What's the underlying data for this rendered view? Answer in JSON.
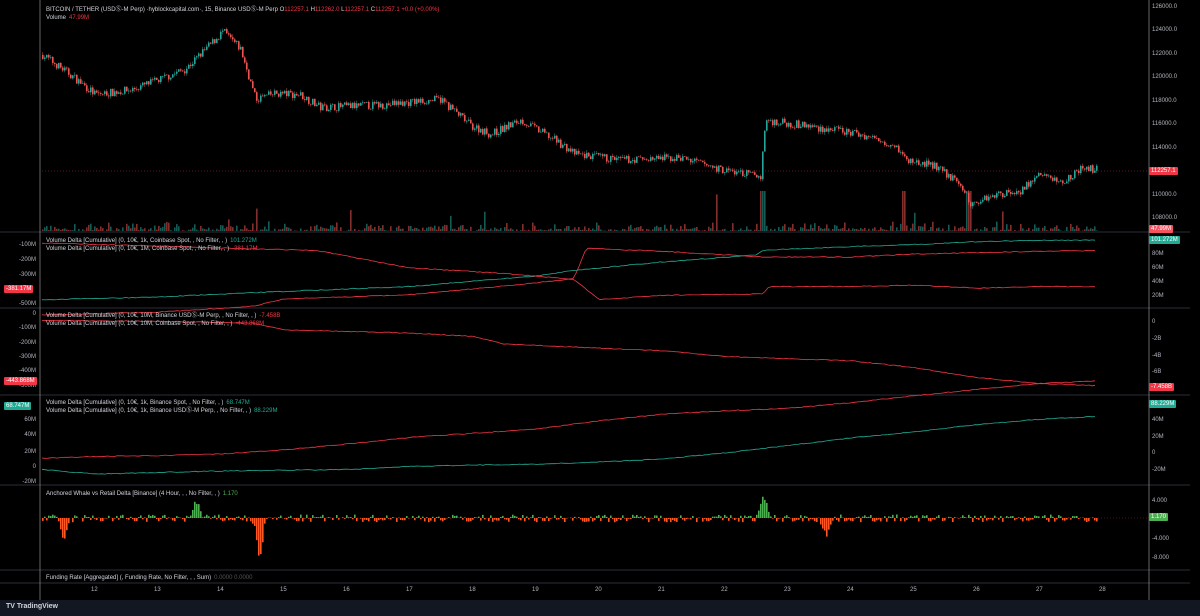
{
  "header": {
    "symbol_line": "BITCOIN / TETHER (USDⓈ-M Perp) ·hyblockcapital.com·, 15, Binance USDⓈ-M Perp",
    "ohlc": {
      "o_label": "O",
      "o": "112257.1",
      "h_label": "H",
      "h": "112262.0",
      "l_label": "L",
      "l": "112257.1",
      "c_label": "C",
      "c": "112257.1",
      "change": "+0.0 (+0.00%)"
    },
    "volume_label": "Volume",
    "volume_value": "47.99M"
  },
  "colors": {
    "up": "#26a69a",
    "down": "#ef5350",
    "line_green": "#22ab94",
    "line_red": "#f23645",
    "hist_up": "#4caf50",
    "hist_down": "#ff5722",
    "bg": "#000000"
  },
  "panes": {
    "vd1": {
      "a": "Volume Delta [Cumulative] (0, 10€, 1k, Coinbase Spot, , No Filter, , )",
      "a_val": "101.272M",
      "b": "Volume Delta [Cumulative] (0, 10€, 1M, Coinbase Spot, , No Filter, , )",
      "b_val": "-381.17M"
    },
    "vd2": {
      "a": "Volume Delta [Cumulative] (0, 10€, 10M, Binance USDⓈ-M Perp, , No Filter, , )",
      "a_val": "-7.458B",
      "b": "Volume Delta [Cumulative] (0, 10€, 10M, Coinbase Spot, , No Filter, , )",
      "b_val": "-443.868M"
    },
    "vd3": {
      "a": "Volume Delta [Cumulative] (0, 10€, 1k, Binance Spot, , No Filter, , )",
      "a_val": "68.747M",
      "b": "Volume Delta [Cumulative] (0, 10€, 1k, Binance USDⓈ-M Perp, , No Filter, , )",
      "b_val": "88.229M"
    },
    "whale": {
      "a": "Anchored Whale vs Retail Delta [Binance] (4 Hour, , , No Filter, , )",
      "a_val": "1.170"
    },
    "funding": {
      "a": "Funding Rate [Aggregated] (, Funding Rate, No Filter, , , Sum)",
      "a_val": "0.0000 0.0000"
    }
  },
  "axes": {
    "price_ticks": [
      "126000.0",
      "124000.0",
      "122000.0",
      "120000.0",
      "118000.0",
      "116000.0",
      "114000.0",
      "110000.0",
      "108000.0"
    ],
    "price_tag": "112257.1",
    "volume_tag": "47.99M",
    "vd1_left": [
      "-100M",
      "-200M",
      "-300M",
      "-500M"
    ],
    "vd1_left_tag": "-381.17M",
    "vd1_right": [
      "80M",
      "60M",
      "40M",
      "20M"
    ],
    "vd1_right_tag": "101.272M",
    "vd2_left": [
      "0",
      "-100M",
      "-200M",
      "-300M",
      "-400M",
      "-500M"
    ],
    "vd2_left_tag": "-443.868M",
    "vd2_right": [
      "0",
      "-2B",
      "-4B",
      "-6B"
    ],
    "vd2_right_tag": "-7.458B",
    "vd3_left": [
      "60M",
      "40M",
      "20M",
      "0",
      "-20M"
    ],
    "vd3_left_tag": "68.747M",
    "vd3_right": [
      "40M",
      "20M",
      "0",
      "-20M"
    ],
    "vd3_right_tag": "88.229M",
    "whale_right": [
      "4.000",
      "-4.000",
      "-8.000"
    ],
    "whale_tag": "1.170",
    "time_ticks": [
      "12",
      "13",
      "14",
      "15",
      "16",
      "17",
      "18",
      "19",
      "20",
      "21",
      "22",
      "23",
      "24",
      "25",
      "26",
      "27",
      "28"
    ]
  },
  "footer": {
    "brand": "TradingView"
  },
  "chart_data": [
    {
      "type": "candlestick",
      "xlabel": "",
      "ylabel": "",
      "ylim": [
        107500,
        126800
      ],
      "x": [
        11.16,
        11.6,
        12.0,
        12.56,
        13.03,
        13.43,
        13.9,
        14.02,
        14.3,
        14.54,
        14.86,
        15.25,
        15.57,
        16.52,
        17.48,
        17.95,
        18.27,
        18.75,
        19.3,
        19.62,
        20.33,
        21.29,
        21.92,
        22.56,
        22.63,
        23.19,
        24.14,
        24.7,
        24.86,
        25.33,
        25.73,
        25.89,
        26.21,
        26.68,
        27.0,
        27.32,
        27.63,
        27.87
      ],
      "price": [
        122000,
        120300,
        118600,
        119000,
        119900,
        120800,
        123300,
        124000,
        122500,
        118200,
        118700,
        118600,
        117500,
        117700,
        118200,
        116000,
        115200,
        116400,
        114700,
        113500,
        113000,
        113200,
        112200,
        111600,
        116400,
        116000,
        115200,
        114300,
        113000,
        112500,
        110900,
        109200,
        110000,
        110400,
        111800,
        111100,
        112200,
        112257
      ]
    },
    {
      "type": "line",
      "series": [
        {
          "name": "Coinbase Spot 1k",
          "axis": "right",
          "x": [
            11.16,
            13,
            15,
            17,
            19,
            19.6,
            21,
            22.5,
            22.6,
            24,
            25,
            26,
            27,
            27.9
          ],
          "y": [
            16,
            20,
            28,
            35,
            50,
            58,
            70,
            80,
            87,
            92,
            95,
            99,
            101,
            101.3
          ]
        },
        {
          "name": "Coinbase Spot 1M",
          "axis": "left",
          "x": [
            11.16,
            13,
            14.5,
            15.5,
            17,
            18.5,
            19.6,
            20.0,
            21,
            22.6,
            22.7,
            24,
            25,
            26,
            27,
            27.9
          ],
          "y": [
            -80,
            -100,
            -120,
            -130,
            -250,
            -290,
            -330,
            -470,
            -440,
            -430,
            -380,
            -380,
            -370,
            -390,
            -380,
            -381
          ]
        }
      ]
    },
    {
      "type": "line",
      "series": [
        {
          "name": "Binance USDⓈ-M Perp 10M",
          "axis": "right",
          "x": [
            11.16,
            13,
            14.5,
            15,
            17,
            18,
            18.5,
            20,
            21,
            22,
            24,
            25,
            26,
            27,
            27.9
          ],
          "y": [
            0.3,
            0.2,
            0,
            -0.8,
            -1.2,
            -1.6,
            -2.5,
            -3.0,
            -3.3,
            -4.0,
            -4.5,
            -5.3,
            -6.5,
            -7.2,
            -7.458
          ]
        },
        {
          "name": "Coinbase Spot 10M",
          "axis": "left",
          "x": [
            11.16,
            13,
            14.5,
            15,
            17,
            18.5,
            19.6,
            19.8,
            21,
            22.6,
            24,
            25,
            26,
            27,
            27.9
          ],
          "y": [
            0,
            -20,
            -60,
            -110,
            -140,
            -200,
            -250,
            -460,
            -440,
            -400,
            -400,
            -420,
            -430,
            -440,
            -443.9
          ]
        }
      ]
    },
    {
      "type": "line",
      "series": [
        {
          "name": "Binance Spot 1k",
          "axis": "left",
          "x": [
            11.16,
            12,
            13,
            14,
            15,
            16,
            17,
            18,
            19,
            20,
            21,
            22,
            23,
            24,
            25,
            26,
            27,
            27.9
          ],
          "y": [
            -2,
            -8,
            -6,
            -4,
            -3,
            -2,
            2,
            4,
            5,
            8,
            12,
            20,
            30,
            40,
            48,
            58,
            65,
            68.7
          ]
        },
        {
          "name": "Binance USDⓈ-M Perp 1k",
          "axis": "right",
          "x": [
            11.16,
            12,
            13,
            14,
            15,
            16,
            17,
            18,
            19,
            20,
            21,
            22,
            23,
            24,
            25,
            26,
            27,
            27.9
          ],
          "y": [
            -5,
            -3,
            -2,
            0,
            5,
            12,
            20,
            25,
            30,
            40,
            48,
            52,
            55,
            62,
            70,
            78,
            85,
            88.2
          ]
        }
      ]
    },
    {
      "type": "bar",
      "name": "",
      "spikes_x": [
        11.5,
        13.6,
        14.6,
        22.6,
        23.6
      ],
      "spikes_y": [
        -3500,
        3000,
        -6500,
        3800,
        -3000
      ]
    }
  ]
}
